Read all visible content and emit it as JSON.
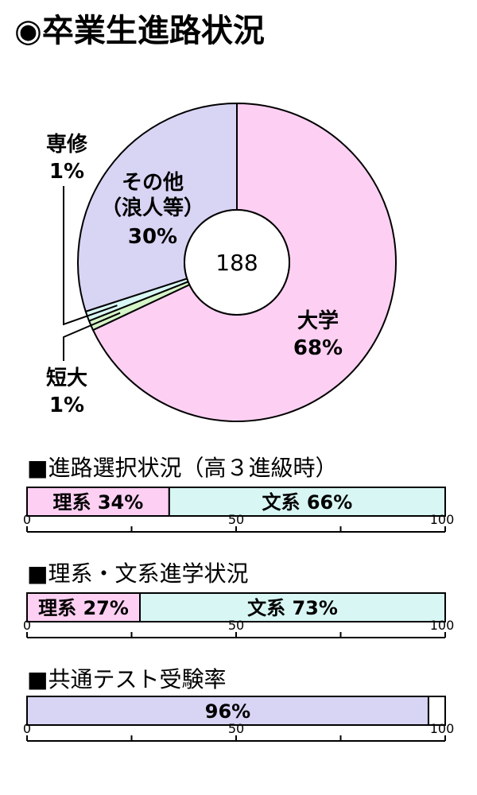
{
  "title": "◉卒業生進路状況",
  "pie": {
    "total": "188",
    "colors": {
      "daigaku": "#fdd0f3",
      "tandai": "#d5f4c8",
      "senshu": "#d8f7f4",
      "sonota": "#d8d4f4"
    },
    "labels": {
      "daigaku": [
        "大学",
        "68%"
      ],
      "sonota": [
        "その他",
        "（浪人等）",
        "30%"
      ],
      "senshu": [
        "専修",
        "1%"
      ],
      "tandai": [
        "短大",
        "1%"
      ]
    }
  },
  "bars_section": [
    {
      "heading": "■進路選択状況（高３進級時）"
    },
    {
      "heading": "■理系・文系進学状況"
    },
    {
      "heading": "■共通テスト受験率"
    }
  ],
  "axis_ticks": [
    "0",
    "50",
    "100"
  ],
  "chart_data": [
    {
      "type": "pie",
      "title": "◉卒業生進路状況",
      "center_label": "188",
      "slices": [
        {
          "name": "大学",
          "value": 68,
          "color": "#fdd0f3"
        },
        {
          "name": "短大",
          "value": 1,
          "color": "#d5f4c8"
        },
        {
          "name": "専修",
          "value": 1,
          "color": "#d8f7f4"
        },
        {
          "name": "その他（浪人等）",
          "value": 30,
          "color": "#d8d4f4"
        }
      ]
    },
    {
      "type": "bar",
      "orientation": "horizontal-stacked",
      "title": "■進路選択状況（高３進級時）",
      "xlim": [
        0,
        100
      ],
      "segments": [
        {
          "name": "理系",
          "value": 34,
          "label": "理系 34%",
          "color": "#fdd0f3"
        },
        {
          "name": "文系",
          "value": 66,
          "label": "文系 66%",
          "color": "#d8f7f4"
        }
      ]
    },
    {
      "type": "bar",
      "orientation": "horizontal-stacked",
      "title": "■理系・文系進学状況",
      "xlim": [
        0,
        100
      ],
      "segments": [
        {
          "name": "理系",
          "value": 27,
          "label": "理系 27%",
          "color": "#fdd0f3"
        },
        {
          "name": "文系",
          "value": 73,
          "label": "文系 73%",
          "color": "#d8f7f4"
        }
      ]
    },
    {
      "type": "bar",
      "orientation": "horizontal-stacked",
      "title": "■共通テスト受験率",
      "xlim": [
        0,
        100
      ],
      "segments": [
        {
          "name": "受験",
          "value": 96,
          "label": "96%",
          "color": "#d8d4f4"
        },
        {
          "name": "",
          "value": 4,
          "label": "",
          "color": "#ffffff"
        }
      ]
    }
  ]
}
